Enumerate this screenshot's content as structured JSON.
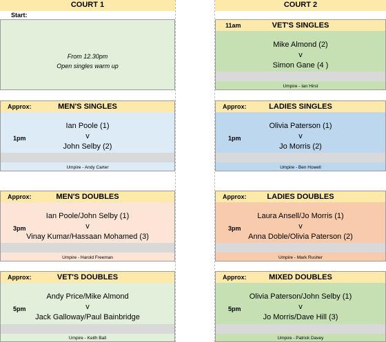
{
  "court1": {
    "title": "COURT 1",
    "start_label": "Start:",
    "warmup": {
      "line1": "From 12.30pm",
      "line2": "Open singles warm up"
    },
    "mens_singles": {
      "approx": "Approx:",
      "title": "MEN'S SINGLES",
      "time": "1pm",
      "player1": "Ian Poole (1)",
      "vs": "v",
      "player2": "John Selby (2)",
      "umpire": "Umpire - Andy Carter"
    },
    "mens_doubles": {
      "approx": "Approx:",
      "title": "MEN'S DOUBLES",
      "time": "3pm",
      "player1": "Ian Poole/John Selby (1)",
      "vs": "v",
      "player2": "Vinay Kumar/Hassaan Mohamed (3)",
      "umpire": "Umpire - Harold Freeman"
    },
    "vets_doubles": {
      "approx": "Approx:",
      "title": "VET'S DOUBLES",
      "time": "5pm",
      "player1": "Andy Price/Mike Almond",
      "vs": "v",
      "player2": "Jack Galloway/Paul Bainbridge",
      "umpire": "Umpire - Keith Ball"
    }
  },
  "court2": {
    "title": "COURT 2",
    "vets_singles": {
      "time": "11am",
      "title": "VET'S SINGLES",
      "player1": "Mike Almond (2)",
      "vs": "v",
      "player2": "Simon Gane (4 )",
      "umpire": "Umpire - Ian Hirst"
    },
    "ladies_singles": {
      "approx": "Approx:",
      "title": "LADIES SINGLES",
      "time": "1pm",
      "player1": "Olivia Paterson (1)",
      "vs": "v",
      "player2": "Jo Morris (2)",
      "umpire": "Umpire - Ben Howell"
    },
    "ladies_doubles": {
      "approx": "Approx:",
      "title": "LADIES DOUBLES",
      "time": "3pm",
      "player1": "Laura Ansell/Jo Morris (1)",
      "vs": "v",
      "player2": "Anna Doble/Olivia Paterson (2)",
      "umpire": "Umpire - Mark Rusher"
    },
    "mixed_doubles": {
      "approx": "Approx:",
      "title": "MIXED DOUBLES",
      "time": "5pm",
      "player1": "Olivia Paterson/John Selby (1)",
      "vs": "v",
      "player2": "Jo Morris/Dave Hill (3)",
      "umpire": "Umpire - Patrick Davey"
    }
  },
  "colors": {
    "header": "#fde9a9",
    "warmup": "#e2efda",
    "blue_light": "#ddebf7",
    "blue": "#bdd7ee",
    "peach_light": "#fce4d6",
    "peach": "#f8cbad",
    "green_light": "#e2efda",
    "green": "#c6e0b4",
    "gray": "#d9d9d9"
  }
}
